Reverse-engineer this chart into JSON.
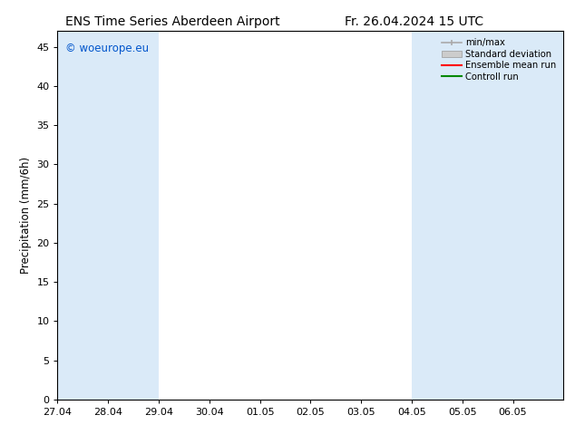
{
  "title_left": "ENS Time Series Aberdeen Airport",
  "title_right": "Fr. 26.04.2024 15 UTC",
  "ylabel": "Precipitation (mm/6h)",
  "watermark": "© woeurope.eu",
  "watermark_color": "#0055cc",
  "xlim_left": 0,
  "xlim_right": 10,
  "ylim_bottom": 0,
  "ylim_top": 47,
  "yticks": [
    0,
    5,
    10,
    15,
    20,
    25,
    30,
    35,
    40,
    45
  ],
  "xtick_labels": [
    "27.04",
    "28.04",
    "29.04",
    "30.04",
    "01.05",
    "02.05",
    "03.05",
    "04.05",
    "05.05",
    "06.05"
  ],
  "shaded_bands": [
    {
      "x_start": 0.0,
      "x_end": 2.0,
      "color": "#daeaf8"
    },
    {
      "x_start": 7.0,
      "x_end": 9.0,
      "color": "#daeaf8"
    },
    {
      "x_start": 9.0,
      "x_end": 10.0,
      "color": "#daeaf8"
    }
  ],
  "legend_items": [
    {
      "label": "min/max",
      "color": "#aaaaaa",
      "style": "errorbar"
    },
    {
      "label": "Standard deviation",
      "color": "#cccccc",
      "style": "box"
    },
    {
      "label": "Ensemble mean run",
      "color": "#ff0000",
      "style": "line"
    },
    {
      "label": "Controll run",
      "color": "#008800",
      "style": "line"
    }
  ],
  "background_color": "#ffffff",
  "plot_bg_color": "#ffffff",
  "title_fontsize": 10,
  "label_fontsize": 8.5,
  "tick_fontsize": 8
}
